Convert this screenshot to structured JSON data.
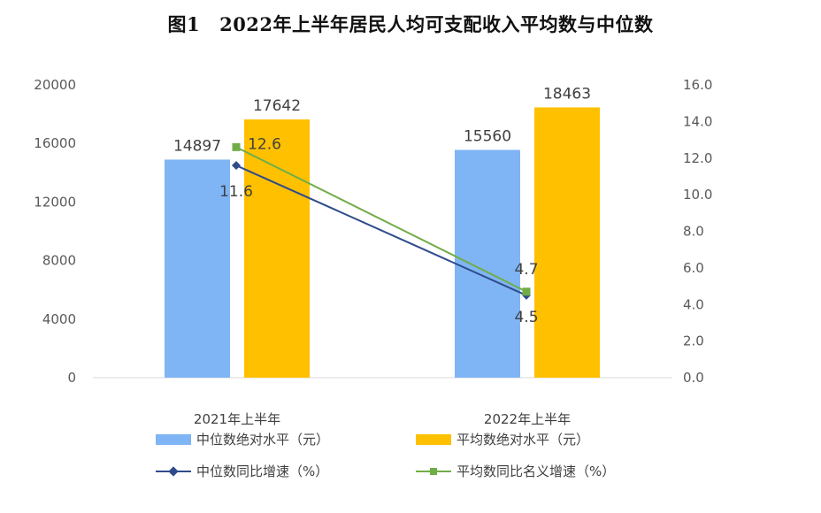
{
  "title_prefix": "图1",
  "title": "2022年上半年居民人均可支配收入平均数与中位数",
  "chart_data": {
    "type": "bar",
    "categories": [
      "2021年上半年",
      "2022年上半年"
    ],
    "series": [
      {
        "name": "中位数绝对水平（元）",
        "kind": "bar",
        "axis": "left",
        "color": "#7FB5F5",
        "values": [
          14897,
          15560
        ]
      },
      {
        "name": "平均数绝对水平（元）",
        "kind": "bar",
        "axis": "left",
        "color": "#FFC000",
        "values": [
          17642,
          18463
        ]
      },
      {
        "name": "中位数同比增速（%）",
        "kind": "line",
        "axis": "right",
        "color": "#2F4B8C",
        "marker": "diamond",
        "values": [
          11.6,
          4.5
        ]
      },
      {
        "name": "平均数同比名义增速（%）",
        "kind": "line",
        "axis": "right",
        "color": "#70AD47",
        "marker": "square",
        "values": [
          12.6,
          4.7
        ]
      }
    ],
    "y_left": {
      "ticks": [
        "0",
        "4000",
        "8000",
        "12000",
        "16000",
        "20000"
      ],
      "range": [
        0,
        20000
      ]
    },
    "y_right": {
      "ticks": [
        "0.0",
        "2.0",
        "4.0",
        "6.0",
        "8.0",
        "10.0",
        "12.0",
        "14.0",
        "16.0"
      ],
      "range": [
        0,
        16
      ]
    },
    "grid": false,
    "legend_position": "bottom"
  }
}
